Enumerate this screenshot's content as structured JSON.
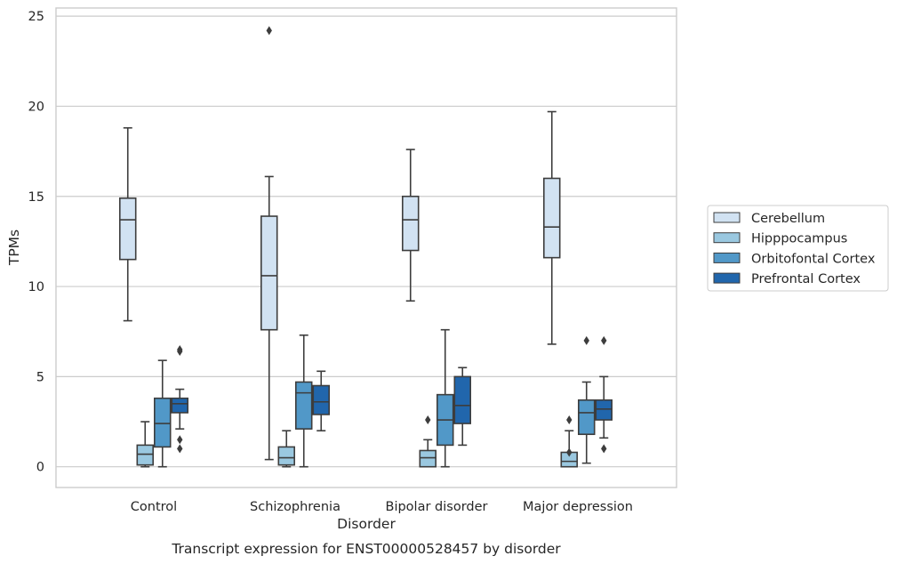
{
  "chart_data": {
    "type": "boxplot",
    "xlabel": "Disorder",
    "ylabel": "TPMs",
    "caption": "Transcript expression for ENST00000528457 by disorder",
    "ylim": [
      -1.15,
      25.45
    ],
    "yticks": [
      0,
      5,
      10,
      15,
      20,
      25
    ],
    "grid": true,
    "legend_placement": "center-right, outside plot",
    "categories": [
      "Control",
      "Schizophrenia",
      "Bipolar disorder",
      "Major depression"
    ],
    "series": [
      {
        "name": "Cerebellum",
        "color": "#d1e2f2",
        "boxes": [
          {
            "whisker_low": 8.1,
            "q1": 11.5,
            "median": 13.7,
            "q3": 14.9,
            "whisker_high": 18.8,
            "outliers": []
          },
          {
            "whisker_low": 0.4,
            "q1": 7.6,
            "median": 10.6,
            "q3": 13.9,
            "whisker_high": 16.1,
            "outliers": [
              24.2
            ]
          },
          {
            "whisker_low": 9.2,
            "q1": 12.0,
            "median": 13.7,
            "q3": 15.0,
            "whisker_high": 17.6,
            "outliers": []
          },
          {
            "whisker_low": 6.8,
            "q1": 11.6,
            "median": 13.3,
            "q3": 16.0,
            "whisker_high": 19.7,
            "outliers": []
          }
        ]
      },
      {
        "name": "Hipppocampus",
        "color": "#9ac8e0",
        "boxes": [
          {
            "whisker_low": 0.0,
            "q1": 0.1,
            "median": 0.7,
            "q3": 1.2,
            "whisker_high": 2.5,
            "outliers": []
          },
          {
            "whisker_low": 0.0,
            "q1": 0.1,
            "median": 0.5,
            "q3": 1.1,
            "whisker_high": 2.0,
            "outliers": []
          },
          {
            "whisker_low": 0.0,
            "q1": 0.0,
            "median": 0.5,
            "q3": 0.9,
            "whisker_high": 1.5,
            "outliers": [
              2.6
            ]
          },
          {
            "whisker_low": 0.0,
            "q1": 0.0,
            "median": 0.3,
            "q3": 0.8,
            "whisker_high": 2.0,
            "outliers": [
              0.8,
              2.6
            ]
          }
        ]
      },
      {
        "name": "Orbitofontal Cortex",
        "color": "#5198c8",
        "boxes": [
          {
            "whisker_low": 0.0,
            "q1": 1.1,
            "median": 2.4,
            "q3": 3.8,
            "whisker_high": 5.9,
            "outliers": []
          },
          {
            "whisker_low": 0.0,
            "q1": 2.1,
            "median": 4.1,
            "q3": 4.7,
            "whisker_high": 7.3,
            "outliers": []
          },
          {
            "whisker_low": 0.0,
            "q1": 1.2,
            "median": 2.6,
            "q3": 4.0,
            "whisker_high": 7.6,
            "outliers": []
          },
          {
            "whisker_low": 0.2,
            "q1": 1.8,
            "median": 3.0,
            "q3": 3.7,
            "whisker_high": 4.7,
            "outliers": [
              7.0
            ]
          }
        ]
      },
      {
        "name": "Prefrontal Cortex",
        "color": "#2166ac",
        "boxes": [
          {
            "whisker_low": 2.1,
            "q1": 3.0,
            "median": 3.5,
            "q3": 3.8,
            "whisker_high": 4.3,
            "outliers": [
              1.0,
              1.5,
              6.4,
              6.5
            ]
          },
          {
            "whisker_low": 2.0,
            "q1": 2.9,
            "median": 3.6,
            "q3": 4.5,
            "whisker_high": 5.3,
            "outliers": []
          },
          {
            "whisker_low": 1.2,
            "q1": 2.4,
            "median": 3.4,
            "q3": 5.0,
            "whisker_high": 5.5,
            "outliers": []
          },
          {
            "whisker_low": 1.6,
            "q1": 2.6,
            "median": 3.2,
            "q3": 3.7,
            "whisker_high": 5.0,
            "outliers": [
              1.0,
              7.0
            ]
          }
        ]
      }
    ]
  }
}
